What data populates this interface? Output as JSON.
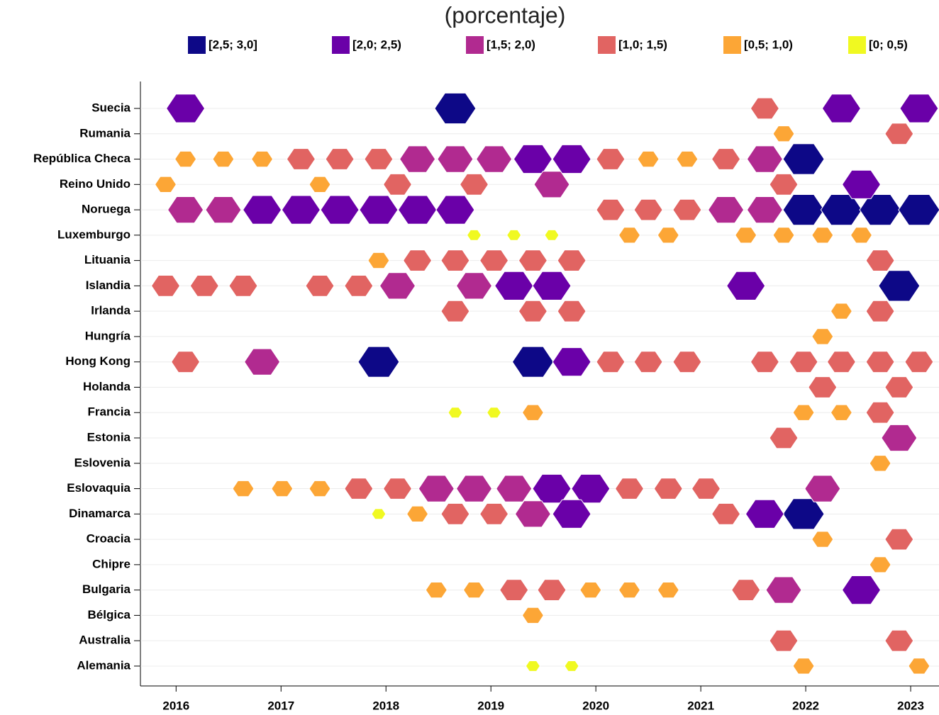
{
  "chart_data": {
    "type": "hexagon-timeline",
    "title": "(porcentaje)",
    "categories": [
      "Suecia",
      "Rumania",
      "República Checa",
      "Reino Unido",
      "Noruega",
      "Luxemburgo",
      "Lituania",
      "Islandia",
      "Irlanda",
      "Hungría",
      "Hong Kong",
      "Holanda",
      "Francia",
      "Estonia",
      "Eslovenia",
      "Eslovaquia",
      "Dinamarca",
      "Croacia",
      "Chipre",
      "Bulgaria",
      "Bélgica",
      "Australia",
      "Alemania"
    ],
    "xlim": [
      2015.66,
      2023.27
    ],
    "xticks": [
      2016,
      2017,
      2018,
      2019,
      2020,
      2021,
      2022,
      2023
    ],
    "grid": true,
    "series": [
      {
        "name": "[2,5; 3,0]",
        "color": "#0d0887",
        "x": [
          2018.66,
          2021.98,
          2021.98,
          2022.34,
          2022.71,
          2023.08,
          2022.89,
          2017.93,
          2019.4,
          2021.98
        ],
        "y": [
          "Suecia",
          "República Checa",
          "Noruega",
          "Noruega",
          "Noruega",
          "Noruega",
          "Islandia",
          "Hong Kong",
          "Hong Kong",
          "Dinamarca"
        ]
      },
      {
        "name": "[2,0; 2,5)",
        "color": "#6a00a8",
        "x": [
          2016.09,
          2022.34,
          2023.08,
          2019.4,
          2019.77,
          2022.53,
          2016.82,
          2017.19,
          2017.56,
          2017.93,
          2018.3,
          2018.66,
          2019.22,
          2019.58,
          2021.43,
          2019.77,
          2019.58,
          2019.95,
          2019.77,
          2021.61,
          2022.53
        ],
        "y": [
          "Suecia",
          "Suecia",
          "Suecia",
          "República Checa",
          "República Checa",
          "Reino Unido",
          "Noruega",
          "Noruega",
          "Noruega",
          "Noruega",
          "Noruega",
          "Noruega",
          "Islandia",
          "Islandia",
          "Islandia",
          "Hong Kong",
          "Eslovaquia",
          "Eslovaquia",
          "Dinamarca",
          "Dinamarca",
          "Bulgaria"
        ]
      },
      {
        "name": "[1,5; 2,0)",
        "color": "#b12a90",
        "x": [
          2018.3,
          2018.66,
          2019.03,
          2021.61,
          2019.58,
          2016.09,
          2016.45,
          2021.24,
          2021.61,
          2018.11,
          2018.84,
          2016.82,
          2022.89,
          2018.48,
          2018.84,
          2019.22,
          2022.16,
          2019.4,
          2021.79
        ],
        "y": [
          "República Checa",
          "República Checa",
          "República Checa",
          "República Checa",
          "Reino Unido",
          "Noruega",
          "Noruega",
          "Noruega",
          "Noruega",
          "Islandia",
          "Islandia",
          "Hong Kong",
          "Estonia",
          "Eslovaquia",
          "Eslovaquia",
          "Eslovaquia",
          "Eslovaquia",
          "Dinamarca",
          "Bulgaria"
        ]
      },
      {
        "name": "[1,0; 1,5)",
        "color": "#e16462",
        "x": [
          2021.61,
          2022.89,
          2017.19,
          2017.56,
          2017.93,
          2020.14,
          2021.24,
          2018.11,
          2018.84,
          2021.79,
          2020.14,
          2020.5,
          2020.87,
          2018.3,
          2018.66,
          2019.03,
          2019.4,
          2019.77,
          2022.71,
          2015.9,
          2016.27,
          2016.64,
          2017.37,
          2017.74,
          2018.66,
          2019.4,
          2019.77,
          2022.71,
          2016.09,
          2020.14,
          2020.5,
          2020.87,
          2021.61,
          2021.98,
          2022.34,
          2022.71,
          2023.08,
          2022.16,
          2022.89,
          2022.71,
          2021.79,
          2017.74,
          2018.11,
          2020.32,
          2020.69,
          2021.05,
          2018.66,
          2019.03,
          2021.24,
          2022.89,
          2019.22,
          2019.58,
          2021.43,
          2021.79,
          2022.89
        ],
        "y": [
          "Suecia",
          "Rumania",
          "República Checa",
          "República Checa",
          "República Checa",
          "República Checa",
          "República Checa",
          "Reino Unido",
          "Reino Unido",
          "Reino Unido",
          "Noruega",
          "Noruega",
          "Noruega",
          "Lituania",
          "Lituania",
          "Lituania",
          "Lituania",
          "Lituania",
          "Lituania",
          "Islandia",
          "Islandia",
          "Islandia",
          "Islandia",
          "Islandia",
          "Irlanda",
          "Irlanda",
          "Irlanda",
          "Irlanda",
          "Hong Kong",
          "Hong Kong",
          "Hong Kong",
          "Hong Kong",
          "Hong Kong",
          "Hong Kong",
          "Hong Kong",
          "Hong Kong",
          "Hong Kong",
          "Holanda",
          "Holanda",
          "Francia",
          "Estonia",
          "Eslovaquia",
          "Eslovaquia",
          "Eslovaquia",
          "Eslovaquia",
          "Eslovaquia",
          "Dinamarca",
          "Dinamarca",
          "Dinamarca",
          "Croacia",
          "Bulgaria",
          "Bulgaria",
          "Bulgaria",
          "Australia",
          "Australia"
        ]
      },
      {
        "name": "[0,5; 1,0)",
        "color": "#fca636",
        "x": [
          2021.79,
          2016.09,
          2016.45,
          2016.82,
          2020.5,
          2020.87,
          2015.9,
          2017.37,
          2020.32,
          2020.69,
          2021.43,
          2021.79,
          2022.16,
          2022.53,
          2017.93,
          2022.34,
          2022.16,
          2019.4,
          2021.98,
          2022.34,
          2022.71,
          2016.64,
          2017.01,
          2017.37,
          2018.3,
          2022.16,
          2022.71,
          2018.48,
          2018.84,
          2019.95,
          2020.32,
          2020.69,
          2019.4,
          2021.98,
          2023.08
        ],
        "y": [
          "Rumania",
          "República Checa",
          "República Checa",
          "República Checa",
          "República Checa",
          "República Checa",
          "Reino Unido",
          "Reino Unido",
          "Luxemburgo",
          "Luxemburgo",
          "Luxemburgo",
          "Luxemburgo",
          "Luxemburgo",
          "Luxemburgo",
          "Lituania",
          "Irlanda",
          "Hungría",
          "Francia",
          "Francia",
          "Francia",
          "Eslovenia",
          "Eslovaquia",
          "Eslovaquia",
          "Eslovaquia",
          "Dinamarca",
          "Croacia",
          "Chipre",
          "Bulgaria",
          "Bulgaria",
          "Bulgaria",
          "Bulgaria",
          "Bulgaria",
          "Bélgica",
          "Alemania",
          "Alemania"
        ]
      },
      {
        "name": "[0; 0,5)",
        "color": "#f0f921",
        "x": [
          2018.84,
          2019.22,
          2019.58,
          2018.66,
          2019.03,
          2017.93,
          2019.4,
          2019.77
        ],
        "y": [
          "Luxemburgo",
          "Luxemburgo",
          "Luxemburgo",
          "Francia",
          "Francia",
          "Dinamarca",
          "Alemania",
          "Alemania"
        ]
      }
    ]
  }
}
